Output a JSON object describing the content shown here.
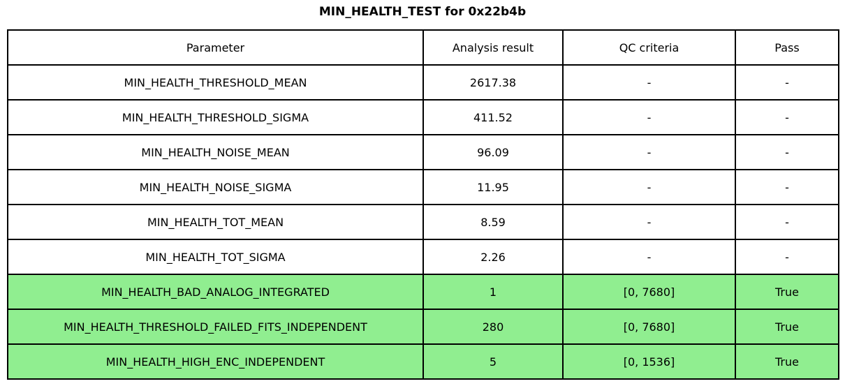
{
  "title": "MIN_HEALTH_TEST for 0x22b4b",
  "colors": {
    "pass_row_green": "#90EE90",
    "border": "#000000",
    "background": "#ffffff"
  },
  "table": {
    "headers": {
      "parameter": "Parameter",
      "analysis_result": "Analysis result",
      "qc_criteria": "QC criteria",
      "pass": "Pass"
    },
    "rows": [
      {
        "parameter": "MIN_HEALTH_THRESHOLD_MEAN",
        "analysis_result": "2617.38",
        "qc_criteria": "-",
        "pass": "-",
        "highlight": false
      },
      {
        "parameter": "MIN_HEALTH_THRESHOLD_SIGMA",
        "analysis_result": "411.52",
        "qc_criteria": "-",
        "pass": "-",
        "highlight": false
      },
      {
        "parameter": "MIN_HEALTH_NOISE_MEAN",
        "analysis_result": "96.09",
        "qc_criteria": "-",
        "pass": "-",
        "highlight": false
      },
      {
        "parameter": "MIN_HEALTH_NOISE_SIGMA",
        "analysis_result": "11.95",
        "qc_criteria": "-",
        "pass": "-",
        "highlight": false
      },
      {
        "parameter": "MIN_HEALTH_TOT_MEAN",
        "analysis_result": "8.59",
        "qc_criteria": "-",
        "pass": "-",
        "highlight": false
      },
      {
        "parameter": "MIN_HEALTH_TOT_SIGMA",
        "analysis_result": "2.26",
        "qc_criteria": "-",
        "pass": "-",
        "highlight": false
      },
      {
        "parameter": "MIN_HEALTH_BAD_ANALOG_INTEGRATED",
        "analysis_result": "1",
        "qc_criteria": "[0, 7680]",
        "pass": "True",
        "highlight": true
      },
      {
        "parameter": "MIN_HEALTH_THRESHOLD_FAILED_FITS_INDEPENDENT",
        "analysis_result": "280",
        "qc_criteria": "[0, 7680]",
        "pass": "True",
        "highlight": true
      },
      {
        "parameter": "MIN_HEALTH_HIGH_ENC_INDEPENDENT",
        "analysis_result": "5",
        "qc_criteria": "[0, 1536]",
        "pass": "True",
        "highlight": true
      }
    ]
  },
  "chart_data": {
    "type": "table",
    "title": "MIN_HEALTH_TEST for 0x22b4b",
    "columns": [
      "Parameter",
      "Analysis result",
      "QC criteria",
      "Pass"
    ],
    "rows": [
      [
        "MIN_HEALTH_THRESHOLD_MEAN",
        2617.38,
        "-",
        "-"
      ],
      [
        "MIN_HEALTH_THRESHOLD_SIGMA",
        411.52,
        "-",
        "-"
      ],
      [
        "MIN_HEALTH_NOISE_MEAN",
        96.09,
        "-",
        "-"
      ],
      [
        "MIN_HEALTH_NOISE_SIGMA",
        11.95,
        "-",
        "-"
      ],
      [
        "MIN_HEALTH_TOT_MEAN",
        8.59,
        "-",
        "-"
      ],
      [
        "MIN_HEALTH_TOT_SIGMA",
        2.26,
        "-",
        "-"
      ],
      [
        "MIN_HEALTH_BAD_ANALOG_INTEGRATED",
        1,
        "[0, 7680]",
        "True"
      ],
      [
        "MIN_HEALTH_THRESHOLD_FAILED_FITS_INDEPENDENT",
        280,
        "[0, 7680]",
        "True"
      ],
      [
        "MIN_HEALTH_HIGH_ENC_INDEPENDENT",
        5,
        "[0, 1536]",
        "True"
      ]
    ],
    "layout": {
      "title_position": "top-center",
      "highlighted_rows": [
        6,
        7,
        8
      ],
      "highlight_color": "#90EE90"
    }
  }
}
